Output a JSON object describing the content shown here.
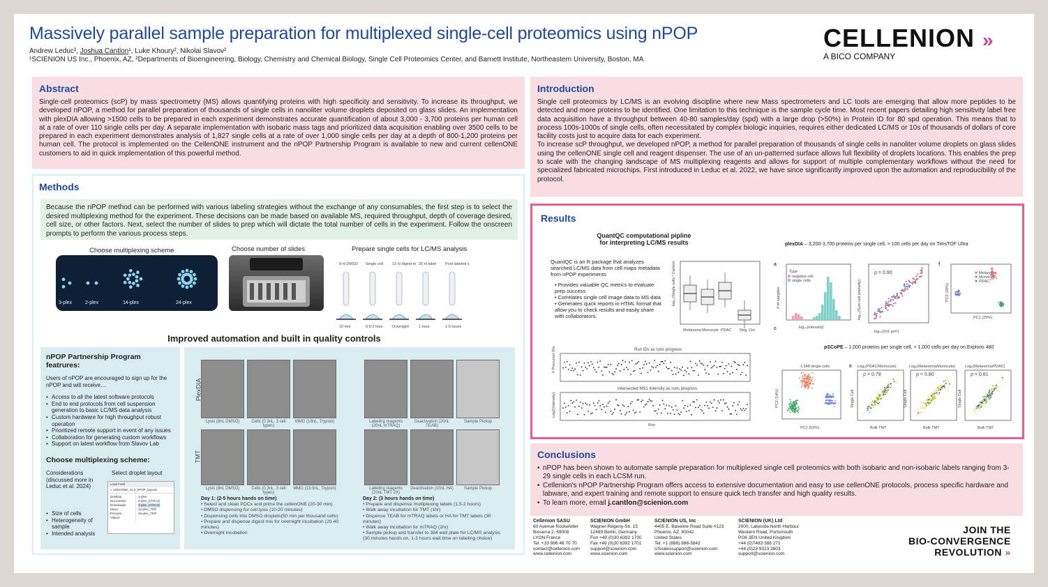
{
  "header": {
    "title": "Massively parallel sample preparation for multiplexed single-cell proteomics using nPOP",
    "authors_prefix": "Andrew Leduc², ",
    "authors_presenter": "Joshua Cantlon",
    "authors_suffix": "¹, Luke Khoury², Nikolai Slavov²",
    "affiliations": "¹SCIENION US Inc., Phoenix, AZ, ²Departments of Bioengineering, Biology, Chemistry and Chemical Biology, Single Cell Proteomics Center, and Barnett Institute, Northeastern University, Boston, MA"
  },
  "logo": {
    "name": "CELLENION",
    "arrows": "»",
    "subtitle": "A BICO COMPANY"
  },
  "abstract": {
    "heading": "Abstract",
    "body": "Single-cell proteomics (scP) by mass spectrometry (MS) allows quantifying proteins with high specificity and sensitivity. To increase its throughput, we developed nPOP, a method for parallel preparation of thousands of single cells in nanoliter volume droplets deposited on glass slides. An implementation with plexDIA allowing >1500 cells to be prepared in each experiment demonstrates accurate quantification of about 3,000 - 3,700 proteins per human cell at a rate of over 110 single cells per day. A separate implementation with isobaric mass tags and prioritized data acquisition enabling over 3500 cells to be prepared in each experiment demonstrates analysis of 1,827 single cells at a rate of over 1,000 single cells per day at a depth of 800-1,200 proteins per human cell. The protocol is implemented on the CellenONE instrument and the nPOP Partnership Program is available to new and current cellenONE customers to aid in quick implementation of this powerful method."
  },
  "introduction": {
    "heading": "Introduction",
    "para1": "Single cell proteomics by LC/MS is an evolving discipline where new Mass spectrometers and LC tools are emerging that allow more peptides to be detected and more proteins to be identified. One limitation to this technique is the sample cycle time. Most recent papers detailing high sensitivity label free data acquisition have a throughput between 40-80 samples/day (spd) with a large drop (>50%) in Protein ID for 80 spd operation. This means that to process 100s-1000s of single cells, often necessitated by complex biologic inquiries, requires either dedicated LC/MS or 10s of thousands of dollars of core facility costs just to acquire data for each experiment.",
    "para2": "To increase scP throughput, we developed nPOP, a method for parallel preparation of thousands of single cells in nanoliter volume droplets on glass slides using the cellenONE single cell and reagent dispenser. The use of an un-patterned surface allows full flexibility of droplets locations. This enables the prep to scale with the changing landscape of MS multiplexing reagents and allows for support of multiple complementary workflows without the need for specialized fabricated microchips. First introduced in Leduc et al. 2022, we have since significantly improved upon the automation and reproducibility of the protocol."
  },
  "methods": {
    "heading": "Methods",
    "note": "Because the nPOP method can be performed with various labeling strategies without the exchange of any consumables, the first step is to select the desired multiplexing method for the experiment. These decisions can be made based on available MS, required throughput, depth of coverage desired, cell size, or other factors. Next, select the number of slides to prep which will dictate the total number of cells in the experiment. Follow the onscreen prompts to perform the various process steps.",
    "fig_multiplex_title": "Choose multiplexing scheme",
    "plex_labels": [
      "3-plex",
      "2-plex",
      "14-plex",
      "24-plex"
    ],
    "fig_slides_title": "Choose number of slides",
    "fig_prep_title": "Prepare single cells for LC/MS analysis",
    "prep_steps": [
      "8 nl DMSO",
      "Single cell",
      "13 nl digest mix",
      "20 nl label",
      "Pool labeled sets to 384 well plate"
    ],
    "prep_times": [
      "10 min",
      "0.5-2 hour",
      "Overnight",
      "1 hour",
      "1-5 hours"
    ],
    "subheading": "Improved automation and built in quality controls",
    "partnership": {
      "heading": "nPOP Partnership Program featrures:",
      "intro": "Users of nPOP are encouraged to sign up for the nPOP and will receive…",
      "items": [
        "Access to all the latest software protocols",
        "End to end protocols from cell suspension generation to basic LC/MS data analysis",
        "Custom hardware for high throughput robust operation",
        "Prioritized remote support in event of any issues",
        "Collaboration for generating custom workflows",
        "Support on latest workflow from Slavov Lab"
      ],
      "scheme_heading": "Choose multiplexing scheme:",
      "considerations": "Considerations (discussed more in Leduc et al. 2024)",
      "consider_items": [
        "Size of cells",
        "Heterogeneity of sample",
        "Intended analysis"
      ],
      "droplet_label": "Select droplet layout",
      "file_dialog_title": "Load Field",
      "file_path": "« cellenONE_v2.0_nPOP_layouts",
      "folders": [
        "Desktop",
        "Documents",
        "Downloads",
        "Music",
        "Pictures",
        "Videos"
      ],
      "files": [
        "1-plex",
        "2-plex_mTRAQ",
        "3-plex_mTRAQ",
        "14-plex_TMT",
        "29-plex_TMT"
      ]
    },
    "workflow": {
      "row_labels": [
        "PlexDIA",
        "TMT"
      ],
      "captions_plex": [
        "Lysis (8nL DMSO)",
        "Cells (0.3nL, 3 cell types)",
        "MMG (13nL, Trypsin)"
      ],
      "captions_tmt": [
        "Lysis (8nL DMSO)",
        "Cells (0.3nL, 3 cell types)",
        "MMG (13.5nL, Trypsin)"
      ],
      "captions_right_top": [
        "Labeling reagents (20nL mTRAQ)",
        "Deactivation (20nL TEAB)",
        "Sample Pickup"
      ],
      "captions_right_bottom": [
        "Labeling reagents (20nL TMT 2X)",
        "Deactivation (10nL HA)",
        "Sample Pickup"
      ],
      "day1_title": "Day 1: (2-5 hours hands on time)",
      "day1_items": [
        "• Select and clean PDCs and prime the cellenONE (20-30 min)",
        "• DMSO dispensing for cell lysis (10-20 minutes)",
        "• Dispensing cells into DMSO droplets(50 min per thousand cells)",
        "• Prepare and dispense digest mix for overnight incubation (20-40 minutes)",
        "• Overnight incubation"
      ],
      "day2_title": "Day 2: (3 hours hands on time)",
      "day2_items": [
        "• Prepare and dispense multiplexing labels (1.5-2 hours)",
        "• Walk away incubation for TMT (1hr)",
        "• Dispense TEAB for mTRAQ labels or HA for TMT labels (30 minutes)",
        "• Walk away incubation for mTRAQ (1hr)",
        "• Sample pickup and transfer to 384 well plate for LC/MS analysis (30 minutes hands on, 1-3 hours wait time on labeling choice)"
      ]
    }
  },
  "results": {
    "heading": "Results",
    "quantqc_title_1": "QuantQC computational pipline",
    "quantqc_title_2": "for interpreting LC/MS results",
    "quantqc_text": "QuantQC is an R package that analyzes searched LC/MS data from cell maps metadata from nPOP experiments",
    "quantqc_items": [
      "Provides valuable QC metrics to evaluate prep success",
      "Correlates single cell image data to MS data",
      "Generates quick reports in HTML format that allow you to check results and easily share with collaborators."
    ],
    "box_categories": [
      "Melanoma",
      "Monocyte",
      "PDAC",
      "Neg. Ctrl."
    ],
    "box_ylabel": "log₁₀(Single cells / Carrier)",
    "run_plot1_title": "Run IDs as runs progress",
    "run_plot1_ylabel": "# Precursor IDs",
    "run_plot2_title": "Intersected MS1 Intensity as runs progress",
    "run_plot2_ylabel": "Log2(Intensity)",
    "run_xlabel": "Run",
    "plexdia_bold": "plexDIA",
    "plexdia_rest": " – 3,200-3,700 proteins per single cell, > 100 cells per day on TimsTOF Ultra",
    "pscope_bold": "pSCoPE",
    "pscope_rest": " – 1,000 proteins per single cell,  > 1,000 cells per day on Exploris 480",
    "panel_letters": [
      "a",
      "c",
      "f",
      "e"
    ],
    "hist_legend": [
      "Type",
      "negative cell",
      "single cells"
    ],
    "hist_xlabel": "log₁₀(Intensity)",
    "hist_ylabel": "# of samples",
    "corr_rho": "ρ = 0.90",
    "corr_xlabel": "log₁₀(Vol. µm³)",
    "corr_ylabel": "log₁₀(Sum cell intensity)",
    "pca_legend": [
      "Melanoma",
      "Monocyte",
      "PDAC"
    ],
    "pca_xlabel": "PC1 (25%)",
    "pca_ylabel": "PC2 (20%)",
    "pca2_title": "1,548 single cells",
    "pca2_xlabel": "PC1 (62%)",
    "pca2_ylabel": "PC2 (14%)",
    "corr_titles": [
      "Log₂(PDAC/Monocyte)",
      "Log₂(Melanoma/Monocyte)",
      "Log₂(Melanoma/PDAC)"
    ],
    "corr_rhos": [
      "ρ = 0.78",
      "ρ = 0.80",
      "ρ = 0.81"
    ],
    "bulk_xlabel": "Bulk TMT",
    "sc_ylabel": "Single Cell"
  },
  "conclusions": {
    "heading": "Conclusions",
    "items": [
      "nPOP has been shown to automate sample preparation for multiplexed single cell proteomics with both isobaric and non-isobaric labels ranging from 3-29 single cells in each LCSM run.",
      "Cellenion's nPOP Partnership Program offers access to extensive documentation and easy to use cellenONE protocols, process specific hardware and labware, and expert training and remote support to ensure quick tech transfer and high quality results."
    ],
    "email_prefix": "To learn more, email ",
    "email": "j.cantlon@scienion.com"
  },
  "footer": {
    "offices": [
      {
        "name": "Cellenion SASU",
        "lines": [
          "60 Avenue Rockefeller",
          "Bioserra 2, 69008",
          "LYON France",
          "Tel. +33 986 48 70 70",
          "contact@cellenion.com",
          "www.cellenion.com"
        ]
      },
      {
        "name": "SCIENION GmbH",
        "lines": [
          "Wagner-Régeny-Str. 15",
          "12489 Berlin, Germany",
          "Fon +49 (0)30 6392 1700",
          "Fax +49 (0)30 6392 1701",
          "support@scienion.com",
          "www.scienion.com"
        ]
      },
      {
        "name": "SCIENION US, Inc",
        "lines": [
          "4405 E. Baseline Road Suite #123",
          "Phoenix, AZ. 85042",
          "United States",
          "Tel: +1 (888) 988-3842",
          "USsalessupport@scienion.com",
          "www.scienion.com"
        ]
      },
      {
        "name": "SCIENION (UK) Ltd",
        "lines": [
          "2000, Lakeside North Harbour",
          "Western Road, Portsmouth",
          "PO6 3EN United Kingdom",
          "+44 (0)7483 388 271",
          "+44 (0)23 9323 3603",
          "support@scienion.com"
        ]
      }
    ],
    "join_lines": [
      "JOIN THE",
      "BIO-CONVERGENCE",
      "REVOLUTION"
    ]
  },
  "colors": {
    "title_blue": "#1f4a9c",
    "accent_pink": "#e3608e",
    "panel_pink": "#f8dde3",
    "panel_blue": "#d9ecef",
    "panel_green": "#e2f1e6"
  }
}
